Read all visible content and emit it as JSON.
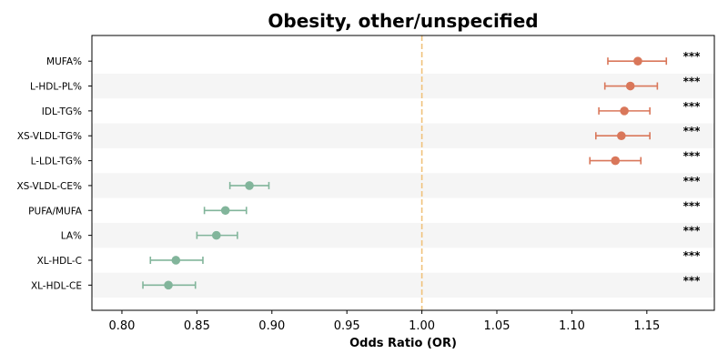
{
  "chart_data": {
    "type": "forest",
    "title": "Obesity, other/unspecified",
    "xlabel": "Odds Ratio (OR)",
    "ylabel": "",
    "xlim": [
      0.78,
      1.195
    ],
    "xticks": [
      0.8,
      0.85,
      0.9,
      0.95,
      1.0,
      1.05,
      1.1,
      1.15
    ],
    "xtick_labels": [
      "0.80",
      "0.85",
      "0.90",
      "0.95",
      "1.00",
      "1.05",
      "1.10",
      "1.15"
    ],
    "reference_line": 1.0,
    "grid": false,
    "row_shading": "alternating",
    "colors": {
      "increased_risk": "#d9775a",
      "decreased_risk": "#82b59b",
      "reference": "#f0c27b",
      "band": "#f5f5f5"
    },
    "rows": [
      {
        "label": "MUFA%",
        "or": 1.144,
        "lo": 1.124,
        "hi": 1.163,
        "sig": "***",
        "direction": "up"
      },
      {
        "label": "L-HDL-PL%",
        "or": 1.139,
        "lo": 1.122,
        "hi": 1.157,
        "sig": "***",
        "direction": "up"
      },
      {
        "label": "IDL-TG%",
        "or": 1.135,
        "lo": 1.118,
        "hi": 1.152,
        "sig": "***",
        "direction": "up"
      },
      {
        "label": "XS-VLDL-TG%",
        "or": 1.133,
        "lo": 1.116,
        "hi": 1.152,
        "sig": "***",
        "direction": "up"
      },
      {
        "label": "L-LDL-TG%",
        "or": 1.129,
        "lo": 1.112,
        "hi": 1.146,
        "sig": "***",
        "direction": "up"
      },
      {
        "label": "XS-VLDL-CE%",
        "or": 0.885,
        "lo": 0.872,
        "hi": 0.898,
        "sig": "***",
        "direction": "down"
      },
      {
        "label": "PUFA/MUFA",
        "or": 0.869,
        "lo": 0.855,
        "hi": 0.883,
        "sig": "***",
        "direction": "down"
      },
      {
        "label": "LA%",
        "or": 0.863,
        "lo": 0.85,
        "hi": 0.877,
        "sig": "***",
        "direction": "down"
      },
      {
        "label": "XL-HDL-C",
        "or": 0.836,
        "lo": 0.819,
        "hi": 0.854,
        "sig": "***",
        "direction": "down"
      },
      {
        "label": "XL-HDL-CE",
        "or": 0.831,
        "lo": 0.814,
        "hi": 0.849,
        "sig": "***",
        "direction": "down"
      }
    ]
  }
}
